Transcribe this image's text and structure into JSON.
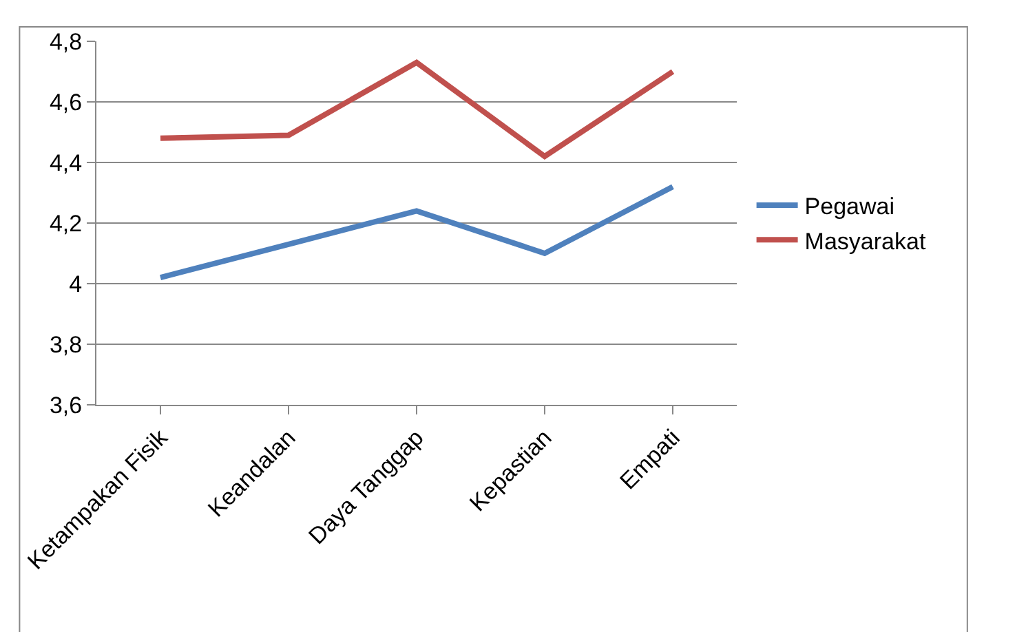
{
  "chart_data": {
    "type": "line",
    "categories": [
      "Ketampakan Fisik",
      "Keandalan",
      "Daya Tanggap",
      "Kepastian",
      "Empati"
    ],
    "series": [
      {
        "name": "Pegawai",
        "color": "#4f81bd",
        "values": [
          4.02,
          4.13,
          4.24,
          4.1,
          4.32
        ]
      },
      {
        "name": "Masyarakat",
        "color": "#c0504d",
        "values": [
          4.48,
          4.49,
          4.73,
          4.42,
          4.7
        ]
      }
    ],
    "ylim": [
      3.6,
      4.8
    ],
    "yticks": [
      {
        "value": 3.6,
        "label": "3,6"
      },
      {
        "value": 3.8,
        "label": "3,8"
      },
      {
        "value": 4,
        "label": "4"
      },
      {
        "value": 4.2,
        "label": "4,2"
      },
      {
        "value": 4.4,
        "label": "4,4"
      },
      {
        "value": 4.6,
        "label": "4,6"
      },
      {
        "value": 4.8,
        "label": "4,8"
      }
    ],
    "grid": "y",
    "legend": "right",
    "marker": "none",
    "line_style": "solid"
  }
}
